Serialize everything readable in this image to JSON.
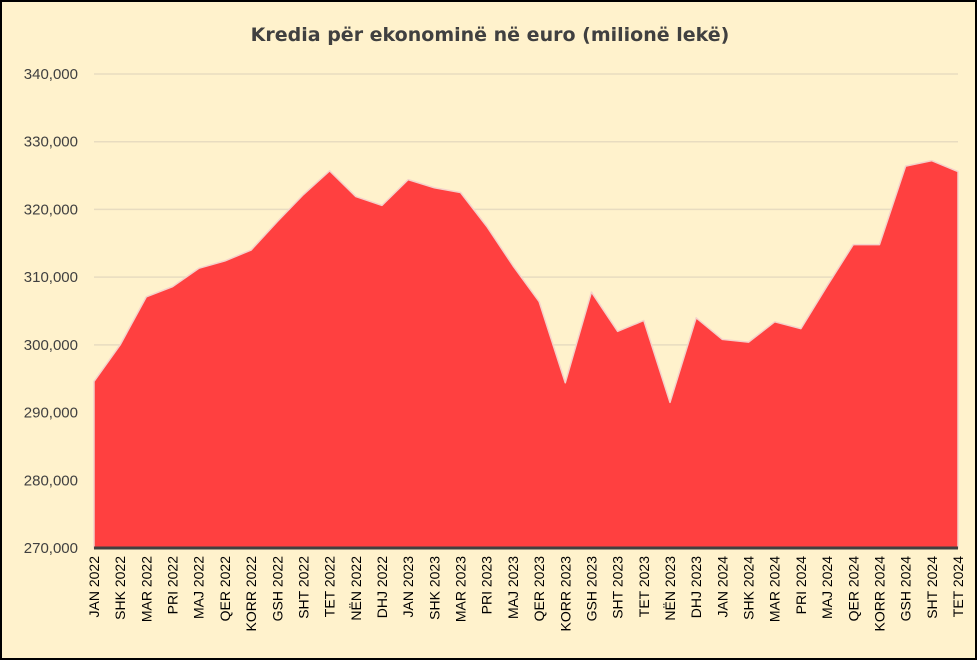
{
  "chart_data": {
    "type": "area",
    "title": "Kredia për ekonominë në euro (milionë lekë)",
    "xlabel": "",
    "ylabel": "",
    "ylim": [
      270000,
      345000
    ],
    "yticks": [
      270000,
      280000,
      290000,
      300000,
      310000,
      320000,
      330000,
      340000
    ],
    "ytick_labels": [
      "270,000",
      "280,000",
      "290,000",
      "300,000",
      "310,000",
      "320,000",
      "330,000",
      "340,000"
    ],
    "grid": true,
    "legend": "none",
    "categories": [
      "JAN 2022",
      "SHK 2022",
      "MAR 2022",
      "PRI 2022",
      "MAJ 2022",
      "QER 2022",
      "KORR 2022",
      "GSH 2022",
      "SHT 2022",
      "TET 2022",
      "NËN 2022",
      "DHJ 2022",
      "JAN 2023",
      "SHK 2023",
      "MAR 2023",
      "PRI 2023",
      "MAJ 2023",
      "QER 2023",
      "KORR 2023",
      "GSH 2023",
      "SHT 2023",
      "TET 2023",
      "NËN 2023",
      "DHJ 2023",
      "JAN 2024",
      "SHK 2024",
      "MAR 2024",
      "PRI 2024",
      "MAJ 2024",
      "QER 2024",
      "KORR 2024",
      "GSH 2024",
      "SHT 2024",
      "TET 2024"
    ],
    "series": [
      {
        "name": "",
        "color": "#ff4040",
        "values": [
          294600,
          300000,
          307100,
          308600,
          311300,
          312400,
          314000,
          318200,
          322200,
          325700,
          321900,
          320600,
          324400,
          323200,
          322500,
          317500,
          311700,
          306400,
          294400,
          307800,
          302000,
          303600,
          291500,
          304000,
          300800,
          300400,
          303400,
          302400,
          308700,
          314800,
          314800,
          326400,
          327200,
          325600
        ]
      }
    ]
  },
  "colors": {
    "background": "#fff2cc",
    "area_fill": "#ff4040",
    "area_edge": "#f4d2cb",
    "gridline": "#e8dcc0",
    "axis": "#404040"
  }
}
